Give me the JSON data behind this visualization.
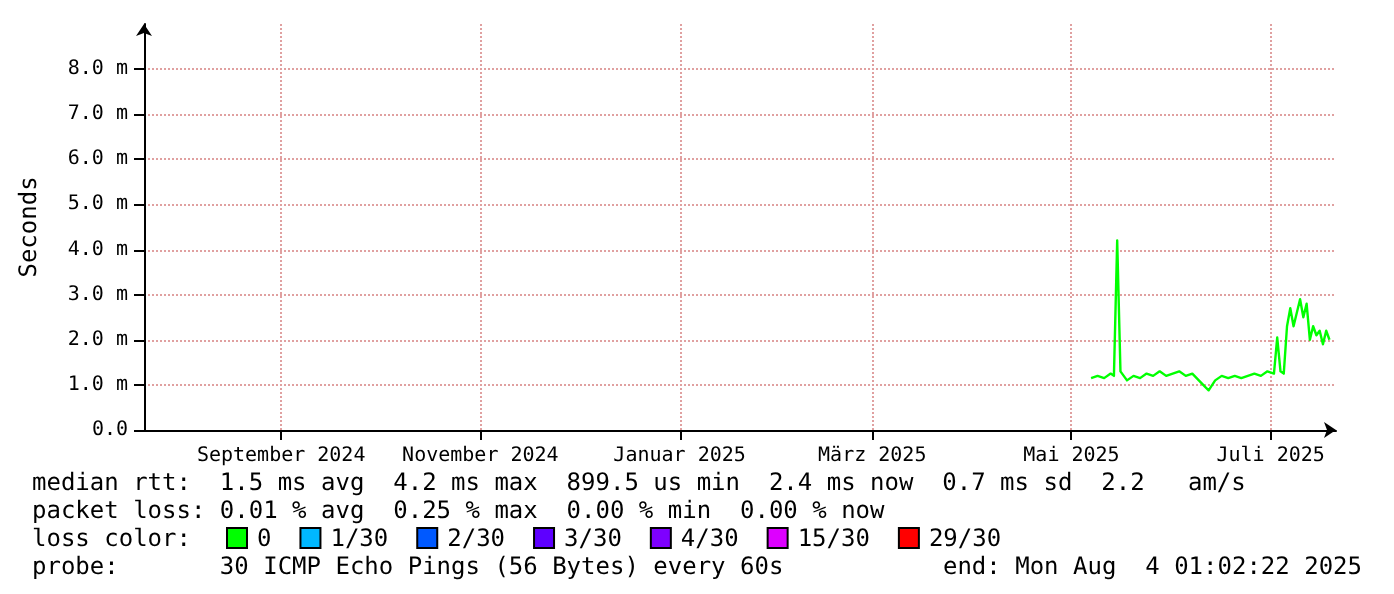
{
  "chart_data": {
    "type": "line",
    "ylabel": "Seconds",
    "xlim": [
      "2024-08-04",
      "2025-08-04"
    ],
    "xticks": [
      {
        "value": "2024-09-15",
        "label": "September 2024"
      },
      {
        "value": "2024-11-15",
        "label": "November 2024"
      },
      {
        "value": "2025-01-15",
        "label": "Januar 2025"
      },
      {
        "value": "2025-03-15",
        "label": "März 2025"
      },
      {
        "value": "2025-05-15",
        "label": "Mai 2025"
      },
      {
        "value": "2025-07-15",
        "label": "Juli 2025"
      }
    ],
    "ylim": [
      0,
      9
    ],
    "yticks": [
      {
        "value": 0,
        "label": "0.0"
      },
      {
        "value": 1,
        "label": "1.0 m"
      },
      {
        "value": 2,
        "label": "2.0 m"
      },
      {
        "value": 3,
        "label": "3.0 m"
      },
      {
        "value": 4,
        "label": "4.0 m"
      },
      {
        "value": 5,
        "label": "5.0 m"
      },
      {
        "value": 6,
        "label": "6.0 m"
      },
      {
        "value": 7,
        "label": "7.0 m"
      },
      {
        "value": 8,
        "label": "8.0 m"
      }
    ],
    "x": [
      "2025-05-21",
      "2025-05-23",
      "2025-05-25",
      "2025-05-27",
      "2025-05-28",
      "2025-05-29",
      "2025-05-30",
      "2025-06-01",
      "2025-06-03",
      "2025-06-05",
      "2025-06-07",
      "2025-06-09",
      "2025-06-11",
      "2025-06-13",
      "2025-06-15",
      "2025-06-17",
      "2025-06-19",
      "2025-06-21",
      "2025-06-23",
      "2025-06-25",
      "2025-06-26",
      "2025-06-28",
      "2025-06-30",
      "2025-07-02",
      "2025-07-04",
      "2025-07-06",
      "2025-07-08",
      "2025-07-10",
      "2025-07-12",
      "2025-07-14",
      "2025-07-16",
      "2025-07-17",
      "2025-07-18",
      "2025-07-19",
      "2025-07-20",
      "2025-07-21",
      "2025-07-22",
      "2025-07-23",
      "2025-07-24",
      "2025-07-25",
      "2025-07-26",
      "2025-07-27",
      "2025-07-28",
      "2025-07-29",
      "2025-07-30",
      "2025-07-31",
      "2025-08-01",
      "2025-08-02"
    ],
    "legend_title": "loss color:",
    "series": [
      {
        "name": "0",
        "color": "#00ff00",
        "values": [
          1.15,
          1.2,
          1.15,
          1.25,
          1.2,
          4.2,
          1.3,
          1.1,
          1.2,
          1.15,
          1.25,
          1.2,
          1.3,
          1.2,
          1.25,
          1.3,
          1.2,
          1.25,
          1.1,
          0.95,
          0.88,
          1.1,
          1.2,
          1.15,
          1.2,
          1.15,
          1.2,
          1.25,
          1.2,
          1.3,
          1.25,
          2.05,
          1.3,
          1.25,
          2.3,
          2.7,
          2.3,
          2.6,
          2.9,
          2.5,
          2.8,
          2.0,
          2.3,
          2.1,
          2.2,
          1.9,
          2.2,
          2.0
        ]
      },
      {
        "name": "1/30",
        "color": "#00b8ff",
        "values": [
          null,
          null,
          null,
          null,
          null,
          null,
          null,
          null,
          null,
          null,
          null,
          null,
          null,
          null,
          null,
          null,
          null,
          null,
          null,
          null,
          null,
          null,
          null,
          null,
          null,
          null,
          null,
          null,
          null,
          null,
          null,
          null,
          null,
          null,
          null,
          null,
          null,
          null,
          null,
          null,
          null,
          null,
          null,
          null,
          null,
          null,
          null,
          null
        ]
      },
      {
        "name": "2/30",
        "color": "#0059ff",
        "values": [
          null,
          null,
          null,
          null,
          null,
          null,
          null,
          null,
          null,
          null,
          null,
          null,
          null,
          null,
          null,
          null,
          null,
          null,
          null,
          null,
          null,
          null,
          null,
          null,
          null,
          null,
          null,
          null,
          null,
          null,
          null,
          null,
          null,
          null,
          null,
          null,
          null,
          null,
          null,
          null,
          null,
          null,
          null,
          null,
          null,
          null,
          null,
          null
        ]
      },
      {
        "name": "3/30",
        "color": "#5e00ff",
        "values": [
          null,
          null,
          null,
          null,
          null,
          null,
          null,
          null,
          null,
          null,
          null,
          null,
          null,
          null,
          null,
          null,
          null,
          null,
          null,
          null,
          null,
          null,
          null,
          null,
          null,
          null,
          null,
          null,
          null,
          null,
          null,
          null,
          null,
          null,
          null,
          null,
          null,
          null,
          null,
          null,
          null,
          null,
          null,
          null,
          null,
          null,
          null,
          null
        ]
      },
      {
        "name": "4/30",
        "color": "#7e00ff",
        "values": [
          null,
          null,
          null,
          null,
          null,
          null,
          null,
          null,
          null,
          null,
          null,
          null,
          null,
          null,
          null,
          null,
          null,
          null,
          null,
          null,
          null,
          null,
          null,
          null,
          null,
          null,
          null,
          null,
          null,
          null,
          null,
          null,
          null,
          null,
          null,
          null,
          null,
          null,
          null,
          null,
          null,
          null,
          null,
          null,
          null,
          null,
          null,
          null
        ]
      },
      {
        "name": "15/30",
        "color": "#dd00ff",
        "values": [
          null,
          null,
          null,
          null,
          null,
          null,
          null,
          null,
          null,
          null,
          null,
          null,
          null,
          null,
          null,
          null,
          null,
          null,
          null,
          null,
          null,
          null,
          null,
          null,
          null,
          null,
          null,
          null,
          null,
          null,
          null,
          null,
          null,
          null,
          null,
          null,
          null,
          null,
          null,
          null,
          null,
          null,
          null,
          null,
          null,
          null,
          null,
          null
        ]
      },
      {
        "name": "29/30",
        "color": "#ff0000",
        "values": [
          null,
          null,
          null,
          null,
          null,
          null,
          null,
          null,
          null,
          null,
          null,
          null,
          null,
          null,
          null,
          null,
          null,
          null,
          null,
          null,
          null,
          null,
          null,
          null,
          null,
          null,
          null,
          null,
          null,
          null,
          null,
          null,
          null,
          null,
          null,
          null,
          null,
          null,
          null,
          null,
          null,
          null,
          null,
          null,
          null,
          null,
          null,
          null
        ]
      }
    ],
    "grid": true,
    "legend": "bottom",
    "marker": "none",
    "line_style": "solid",
    "annotations": [
      "median rtt:  1.5 ms avg  4.2 ms max  899.5 us min  2.4 ms now  0.7 ms sd  2.2   am/s",
      "packet loss: 0.01 % avg  0.25 % max  0.00 % min  0.00 % now",
      "probe:       30 ICMP Echo Pings (56 Bytes) every 60s",
      "end: Mon Aug  4 01:02:22 2025"
    ]
  }
}
